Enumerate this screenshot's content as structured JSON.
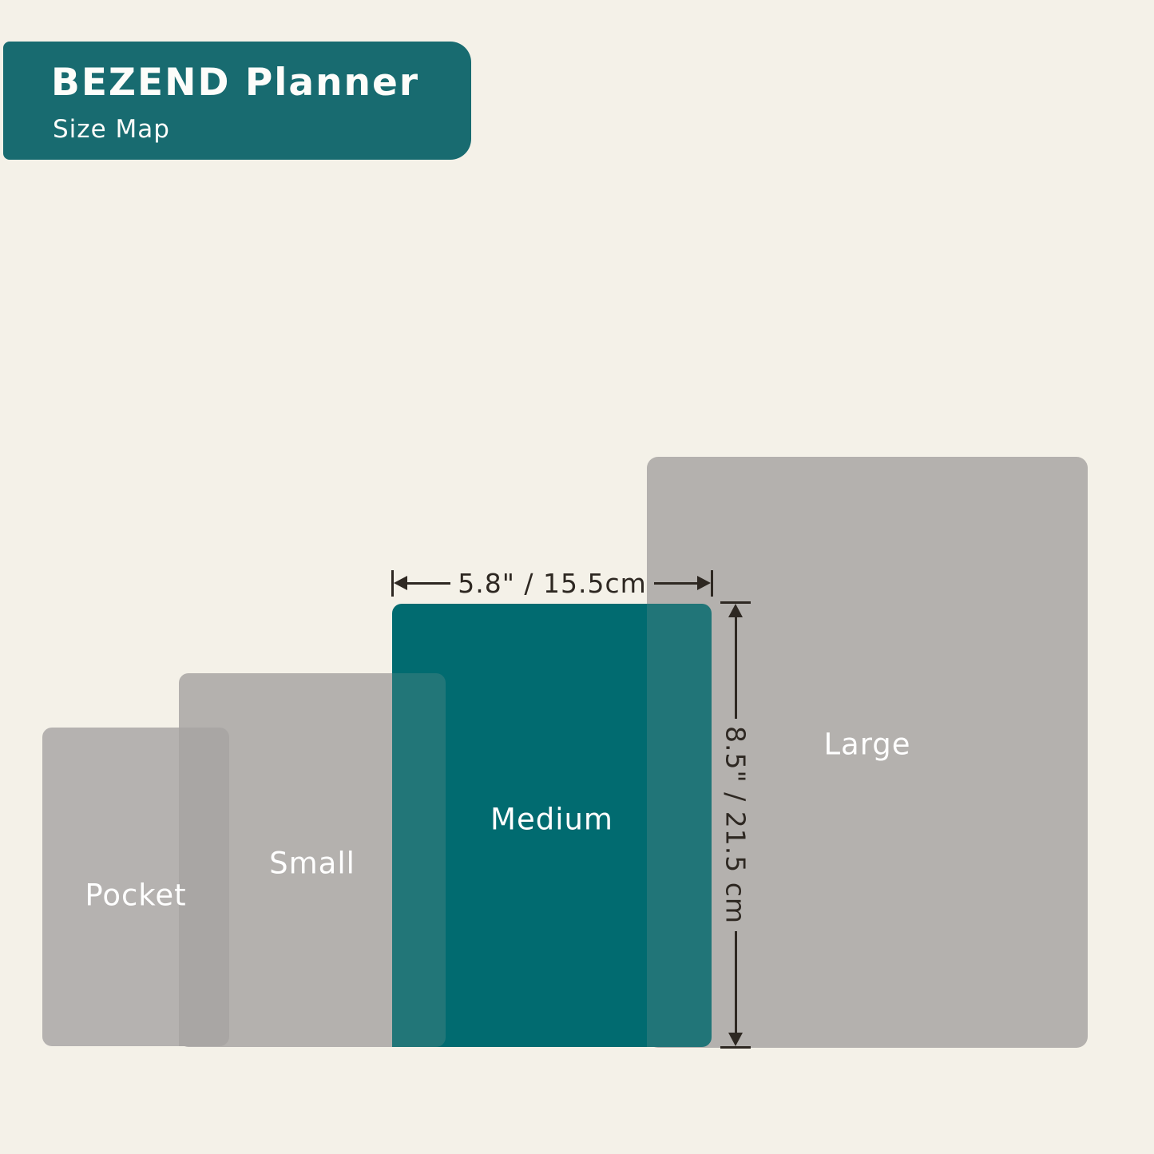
{
  "header": {
    "title": "BEZEND Planner",
    "subtitle": "Size Map"
  },
  "sizes": [
    {
      "name": "Pocket"
    },
    {
      "name": "Small"
    },
    {
      "name": "Medium",
      "width_label": "5.8\" / 15.5cm",
      "height_label": "8.5\" / 21.5 cm"
    },
    {
      "name": "Large"
    }
  ],
  "dimensions": {
    "medium_width": "5.8\" / 15.5cm",
    "medium_height": "8.5\" / 21.5 cm"
  },
  "colors": {
    "background": "#f4f1e8",
    "header_teal": "#186b70",
    "medium_teal": "#016b70",
    "teal_gray_overlap": "#217578",
    "base_gray": "#b4b1ae",
    "gray_overlap": "#a9a6a4",
    "dimension_ink": "#2e2822",
    "label_text": "#ffffff"
  }
}
